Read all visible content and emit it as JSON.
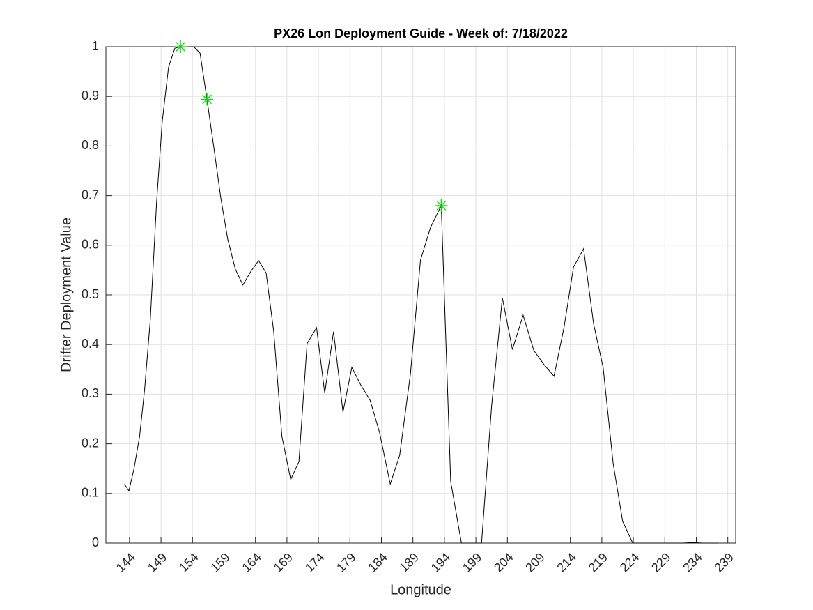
{
  "chart_data": {
    "type": "line",
    "title": "PX26 Lon Deployment Guide - Week of: 7/18/2022",
    "xlabel": "Longitude",
    "ylabel": "Drifter Deployment Value",
    "series": [
      {
        "color": "#000000",
        "x": [
          143.2,
          143.9,
          144.7,
          145.6,
          146.4,
          147.3,
          148.3,
          149.2,
          150.2,
          151.2,
          152.1,
          153.2,
          154.2,
          155.2,
          156.3,
          157.4,
          158.5,
          159.6,
          160.8,
          162.0,
          163.3,
          164.5,
          165.7,
          166.9,
          168.2,
          169.6,
          170.9,
          172.2,
          173.7,
          175.0,
          176.4,
          177.9,
          179.3,
          180.7,
          182.2,
          183.7,
          185.4,
          186.9,
          188.6,
          190.2,
          191.8,
          193.5,
          195.0,
          196.7,
          198.2,
          199.9,
          201.5,
          203.2,
          204.8,
          206.5,
          208.2,
          209.8,
          211.4,
          213.0,
          214.5,
          216.1,
          217.7,
          219.2,
          220.8,
          222.3,
          223.9,
          225.4,
          227.1,
          228.7,
          230.3,
          231.8,
          233.4,
          235.0,
          237.4
        ],
        "values": [
          0.119,
          0.105,
          0.149,
          0.215,
          0.31,
          0.45,
          0.687,
          0.85,
          0.959,
          0.997,
          1.0,
          1.0,
          1.0,
          0.987,
          0.894,
          0.796,
          0.695,
          0.612,
          0.552,
          0.52,
          0.548,
          0.569,
          0.544,
          0.426,
          0.215,
          0.128,
          0.164,
          0.402,
          0.434,
          0.302,
          0.426,
          0.264,
          0.354,
          0.319,
          0.288,
          0.223,
          0.119,
          0.177,
          0.34,
          0.57,
          0.636,
          0.68,
          0.124,
          0,
          0,
          0,
          0.277,
          0.494,
          0.39,
          0.459,
          0.388,
          0.36,
          0.336,
          0.435,
          0.556,
          0.593,
          0.441,
          0.354,
          0.16,
          0.044,
          0,
          0,
          0,
          0,
          0,
          0,
          0.001,
          0,
          0
        ]
      }
    ],
    "markers": {
      "color": "#00e000",
      "x": [
        152.1,
        156.3,
        193.5
      ],
      "values": [
        1.0,
        0.894,
        0.68
      ]
    },
    "xlim": [
      140.25,
      240.25
    ],
    "ylim": [
      0,
      1
    ],
    "xticks": [
      144,
      149,
      154,
      159,
      164,
      169,
      174,
      179,
      184,
      189,
      194,
      199,
      204,
      209,
      214,
      219,
      224,
      229,
      234,
      239
    ],
    "yticks": [
      0,
      0.1,
      0.2,
      0.3,
      0.4,
      0.5,
      0.6,
      0.7,
      0.8,
      0.9,
      1
    ],
    "grid": true
  }
}
